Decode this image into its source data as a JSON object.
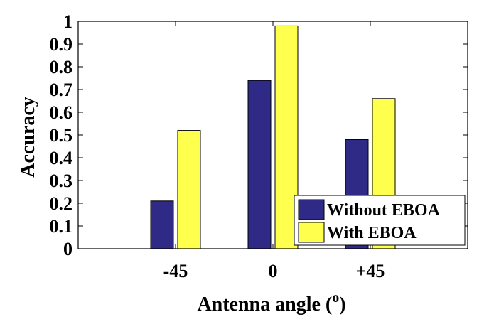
{
  "chart_data": {
    "type": "bar",
    "categories": [
      "-45",
      "0",
      "+45"
    ],
    "series": [
      {
        "name": "Without EBOA",
        "color": "#2e2a86",
        "values": [
          0.21,
          0.74,
          0.48
        ]
      },
      {
        "name": "With EBOA",
        "color": "#ffff4d",
        "values": [
          0.52,
          0.98,
          0.66
        ]
      }
    ],
    "xlabel": "Antenna angle (",
    "xlabel_superscript": "o",
    "xlabel_suffix": ")",
    "ylabel": "Accuracy",
    "ylim": [
      0,
      1
    ],
    "yticks": [
      "0",
      "0.1",
      "0.2",
      "0.3",
      "0.4",
      "0.5",
      "0.6",
      "0.7",
      "0.8",
      "0.9",
      "1"
    ],
    "grid": false,
    "legend_position": "bottom-right"
  }
}
